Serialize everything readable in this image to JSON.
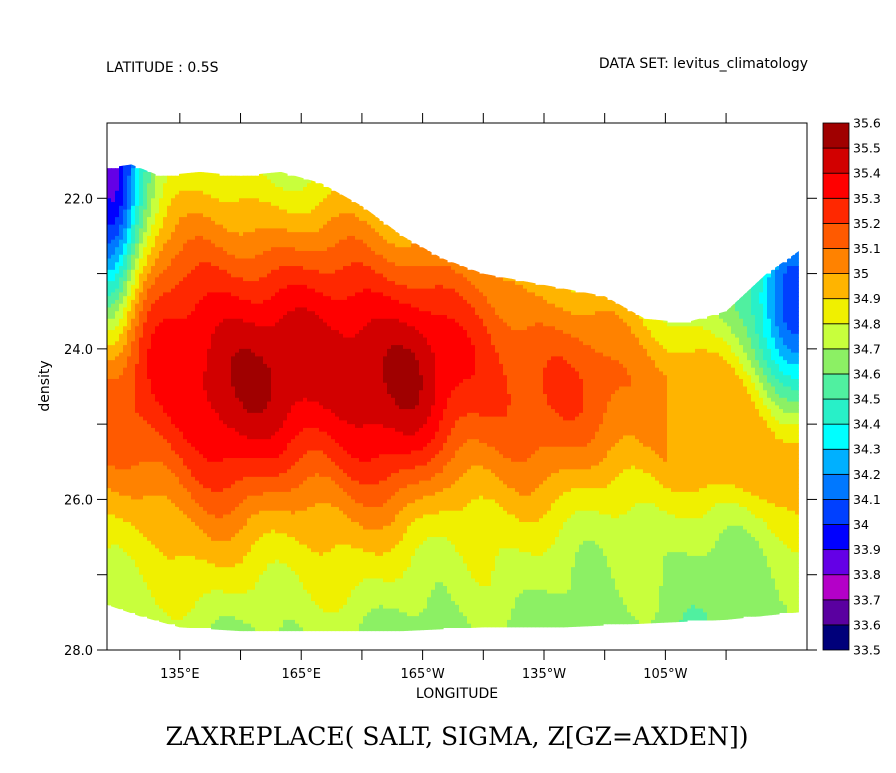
{
  "chart_data": {
    "type": "heatmap",
    "header_left": "LATITUDE : 0.5S",
    "header_right": "DATA SET: levitus_climatology",
    "title": "ZAXREPLACE( SALT, SIGMA, Z[GZ=AXDEN])",
    "xlabel": "LONGITUDE",
    "ylabel": "density",
    "xlim": [
      117,
      290
    ],
    "ylim": [
      21.0,
      28.0
    ],
    "y_inverted": true,
    "x_ticks": [
      {
        "value": 135,
        "label": "135°E"
      },
      {
        "value": 165,
        "label": "165°E"
      },
      {
        "value": 195,
        "label": "165°W"
      },
      {
        "value": 225,
        "label": "135°W"
      },
      {
        "value": 255,
        "label": "105°W"
      }
    ],
    "x_minor_ticks": [
      150,
      180,
      210,
      240,
      270
    ],
    "y_ticks": [
      {
        "value": 22,
        "label": "22.0"
      },
      {
        "value": 24,
        "label": "24.0"
      },
      {
        "value": 26,
        "label": "26.0"
      },
      {
        "value": 28,
        "label": "28.0"
      }
    ],
    "y_minor_ticks": [
      23,
      25,
      27
    ],
    "colorbar": {
      "levels": [
        "33.5",
        "33.6",
        "33.7",
        "33.8",
        "33.9",
        "34",
        "34.1",
        "34.2",
        "34.3",
        "34.4",
        "34.5",
        "34.6",
        "34.7",
        "34.8",
        "34.9",
        "35",
        "35.1",
        "35.2",
        "35.3",
        "35.4",
        "35.5",
        "35.6"
      ],
      "colors": [
        "#00007a",
        "#5a00a0",
        "#b400c8",
        "#6400e6",
        "#0000ff",
        "#0040ff",
        "#0078ff",
        "#00b0ff",
        "#00ffff",
        "#28f0c8",
        "#50f0a0",
        "#8cf064",
        "#c8ff3c",
        "#f0f000",
        "#ffb400",
        "#ff8200",
        "#ff5a00",
        "#ff2800",
        "#ff0000",
        "#d20000",
        "#a00000"
      ]
    },
    "field_summary": {
      "top_boundary": [
        [
          117,
          21.6
        ],
        [
          123,
          21.55
        ],
        [
          130,
          21.7
        ],
        [
          140,
          21.65
        ],
        [
          150,
          21.7
        ],
        [
          160,
          21.65
        ],
        [
          170,
          21.8
        ],
        [
          180,
          22.1
        ],
        [
          190,
          22.5
        ],
        [
          200,
          22.8
        ],
        [
          210,
          23.0
        ],
        [
          220,
          23.1
        ],
        [
          230,
          23.2
        ],
        [
          240,
          23.3
        ],
        [
          250,
          23.6
        ],
        [
          260,
          23.65
        ],
        [
          270,
          23.5
        ],
        [
          280,
          23.0
        ],
        [
          288,
          22.7
        ]
      ],
      "bottom_boundary": [
        [
          117,
          27.4
        ],
        [
          125,
          27.55
        ],
        [
          135,
          27.7
        ],
        [
          150,
          27.75
        ],
        [
          170,
          27.75
        ],
        [
          190,
          27.75
        ],
        [
          210,
          27.7
        ],
        [
          230,
          27.7
        ],
        [
          250,
          27.65
        ],
        [
          270,
          27.6
        ],
        [
          288,
          27.5
        ]
      ],
      "core_max": [
        [
          145,
          24.2
        ],
        [
          182,
          23.6
        ],
        [
          193,
          24.3
        ]
      ]
    }
  }
}
